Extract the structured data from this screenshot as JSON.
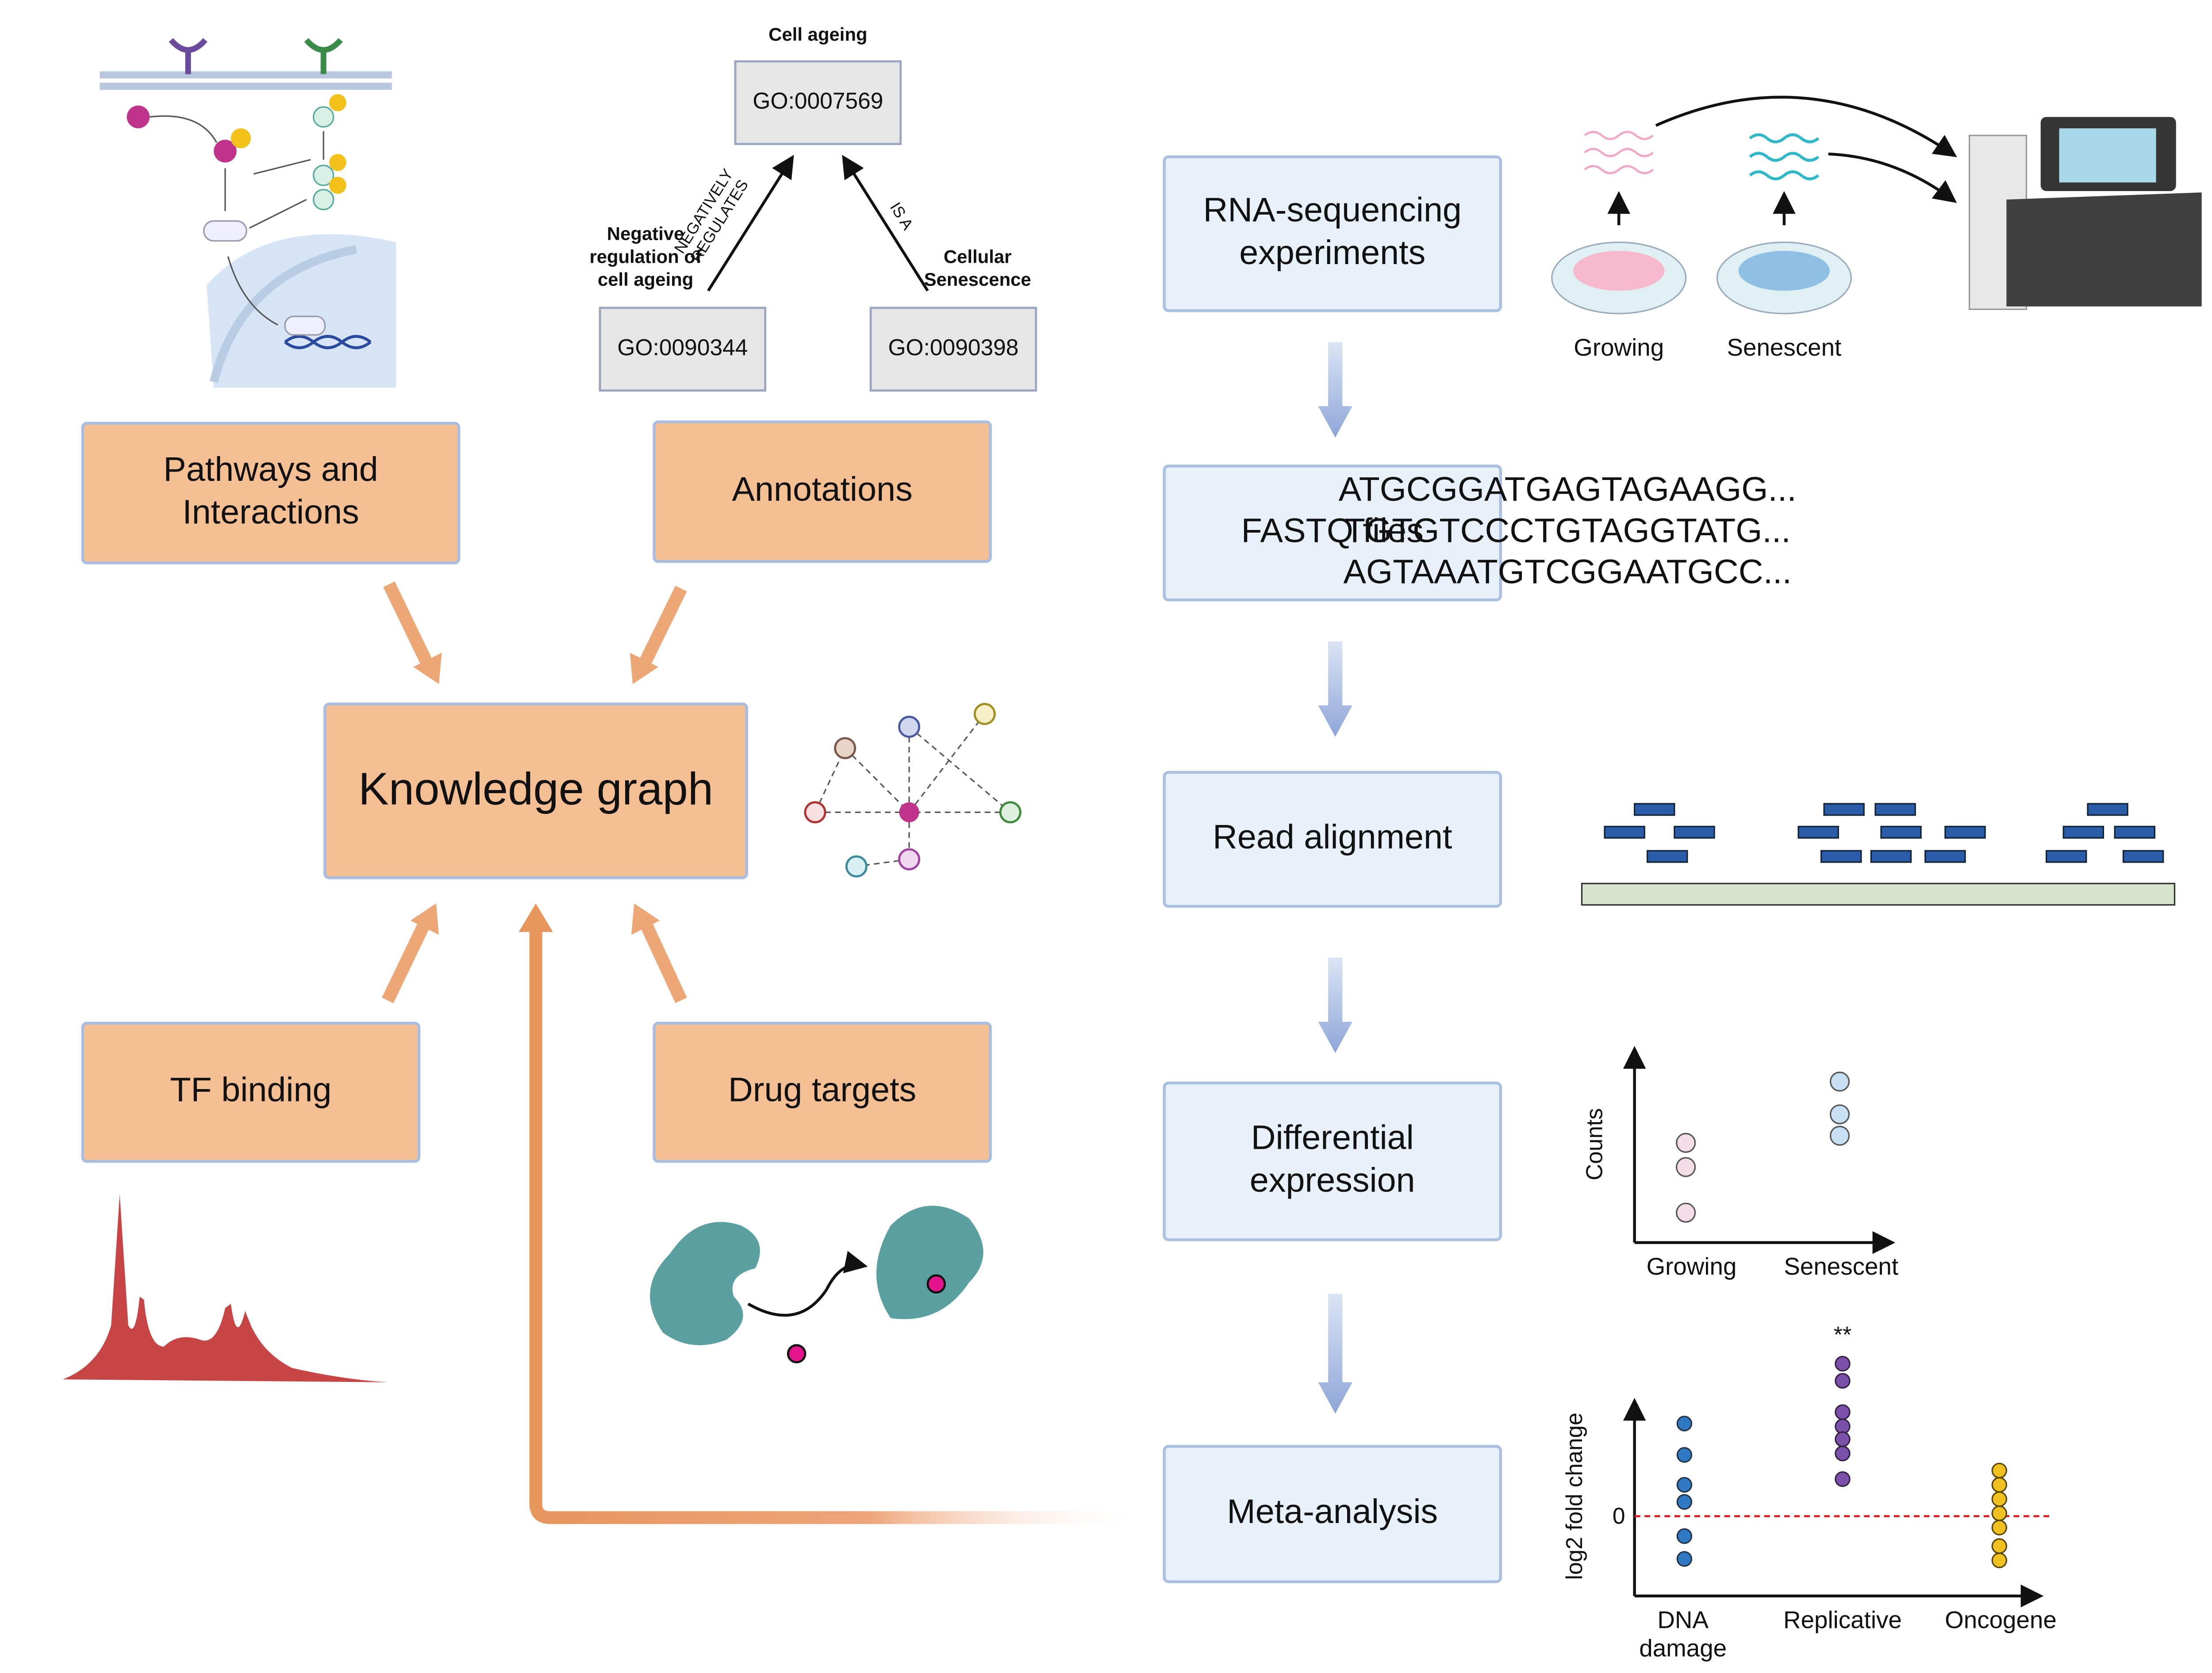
{
  "sources": [
    {
      "lines": [
        "Pathways and",
        "Interactions"
      ]
    },
    {
      "lines": [
        "Annotations"
      ]
    },
    {
      "lines": [
        "TF binding"
      ]
    },
    {
      "lines": [
        "Drug targets"
      ]
    }
  ],
  "center": "Knowledge graph",
  "ontology": {
    "nodes": [
      {
        "id": "GO:0007569",
        "label": [
          "Cell ageing"
        ]
      },
      {
        "id": "GO:0090344",
        "label": [
          "Negative",
          "regulation of",
          "cell ageing"
        ]
      },
      {
        "id": "GO:0090398",
        "label": [
          "Cellular",
          "Senescence"
        ]
      }
    ],
    "edges": [
      {
        "label": [
          "NEGATIVELY",
          "REGULATES"
        ]
      },
      {
        "label": [
          "IS A"
        ]
      }
    ]
  },
  "pipeline": [
    {
      "lines": [
        "RNA-sequencing",
        "experiments"
      ]
    },
    {
      "lines": [
        "FASTQ files"
      ]
    },
    {
      "lines": [
        "Read alignment"
      ]
    },
    {
      "lines": [
        "Differential",
        "expression"
      ]
    },
    {
      "lines": [
        "Meta-analysis"
      ]
    }
  ],
  "samples": [
    "Growing",
    "Senescent"
  ],
  "sequences": [
    "ATGCGGATGAGTAGAAGG...",
    "TGTGTCCCTGTAGGTATG...",
    "AGTAAATGTCGGAATGCC..."
  ],
  "counts_plot": {
    "y_label": "Counts",
    "categories": [
      "Growing",
      "Senescent"
    ]
  },
  "fold_change_plot": {
    "y_label": "log2 fold change",
    "zero_label": "0",
    "significance": "**",
    "categories": [
      [
        "DNA",
        "damage"
      ],
      [
        "Replicative"
      ],
      [
        "Oncogene"
      ]
    ]
  }
}
